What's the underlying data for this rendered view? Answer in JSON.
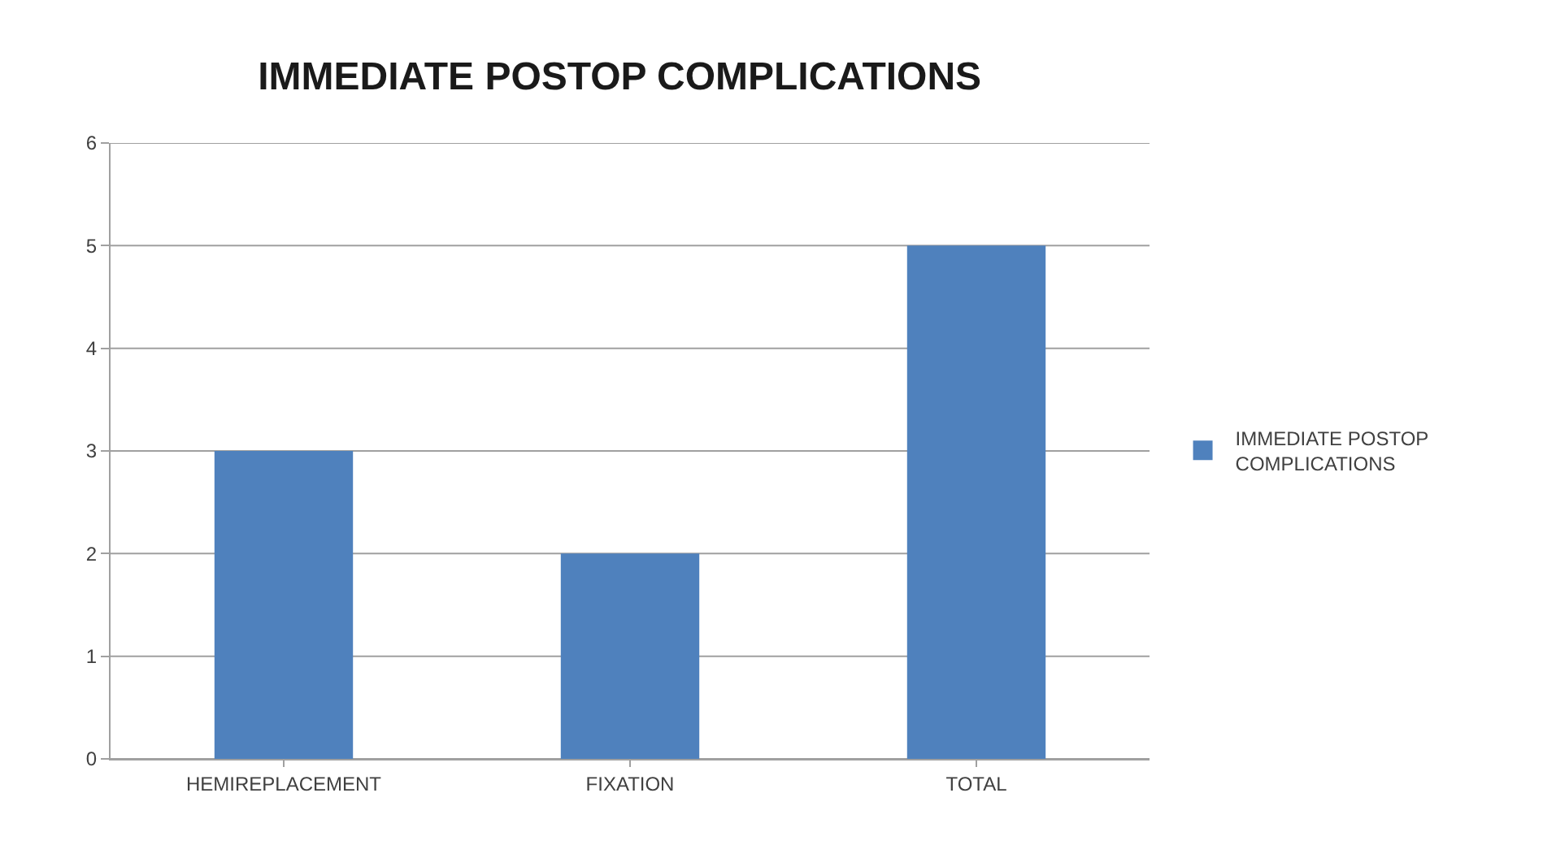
{
  "chart_data": {
    "type": "bar",
    "title": "IMMEDIATE POSTOP COMPLICATIONS",
    "categories": [
      "HEMIREPLACEMENT",
      "FIXATION",
      "TOTAL"
    ],
    "series": [
      {
        "name": "IMMEDIATE POSTOP COMPLICATIONS",
        "color": "#4f81bd",
        "values": [
          3,
          2,
          5
        ]
      }
    ],
    "ylim": [
      0,
      6
    ],
    "yticks": [
      0,
      1,
      2,
      3,
      4,
      5,
      6
    ],
    "grid": "y",
    "legend": "right"
  }
}
